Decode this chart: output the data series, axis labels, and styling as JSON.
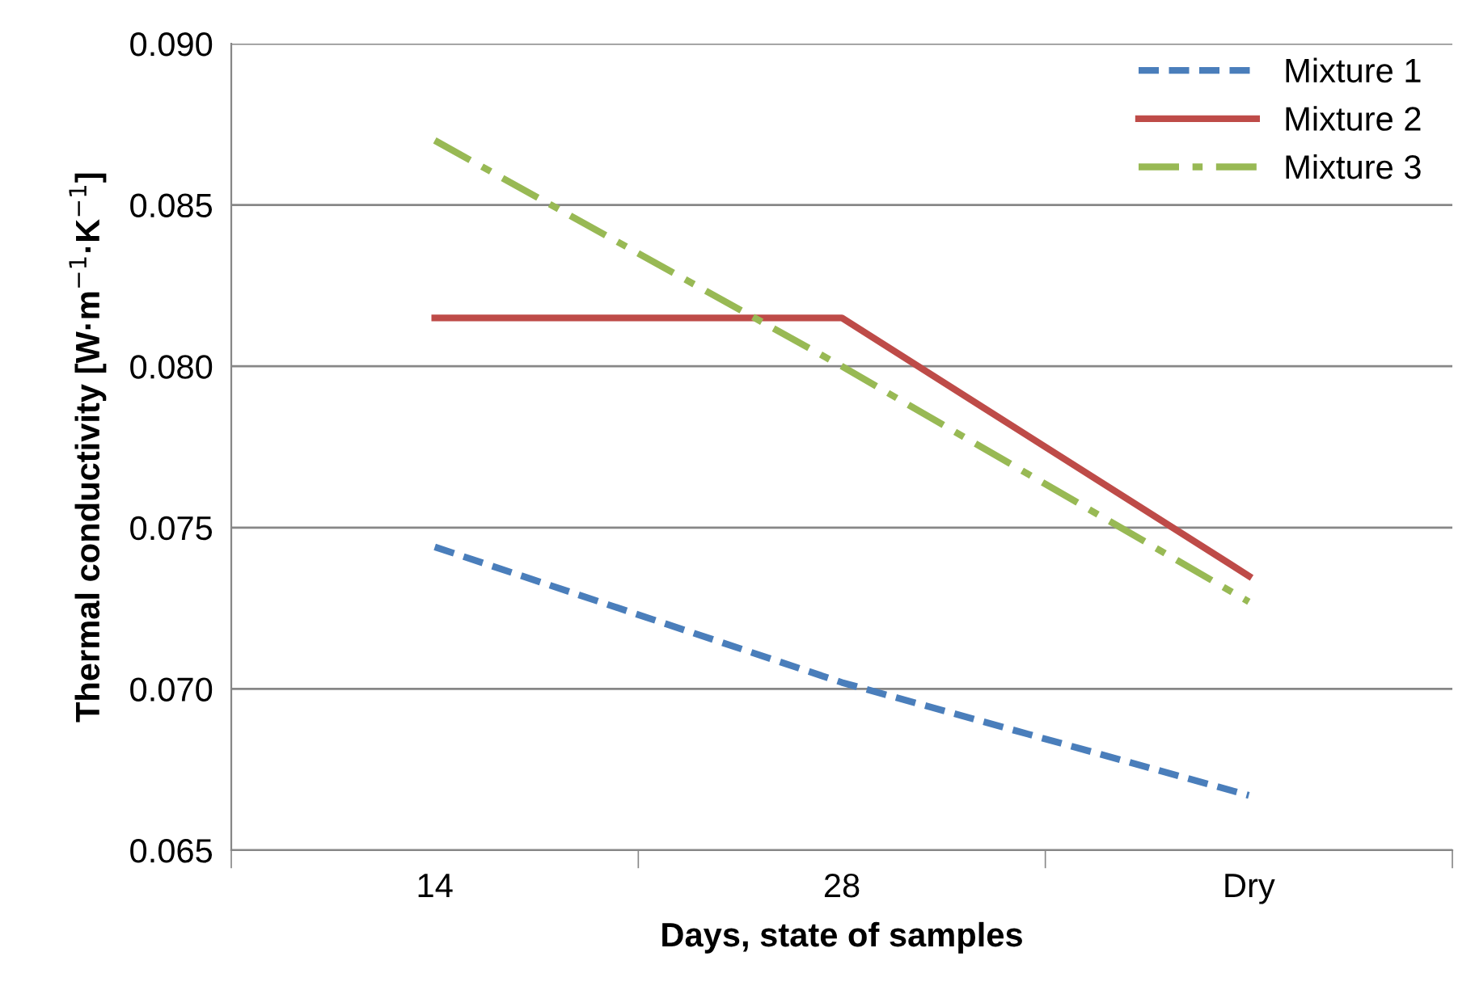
{
  "chart_data": {
    "type": "line",
    "xlabel": "Days, state of samples",
    "ylabel": "Thermal conductivity [W·m$^{−1}$·K$^{−1}$]",
    "categories": [
      "14",
      "28",
      "Dry"
    ],
    "series": [
      {
        "name": "Mixture 1",
        "color": "#4a7ebb",
        "line_style": "dashed",
        "values": [
          0.0744,
          0.0702,
          0.0667
        ]
      },
      {
        "name": "Mixture 2",
        "color": "#be4b48",
        "line_style": "solid",
        "values": [
          0.0815,
          0.0815,
          0.0735
        ]
      },
      {
        "name": "Mixture 3",
        "color": "#98b954",
        "line_style": "dashdot",
        "values": [
          0.087,
          0.08,
          0.0727
        ]
      }
    ],
    "ylim": [
      0.065,
      0.09
    ],
    "yticks": [
      {
        "value": 0.065,
        "label": "0.065"
      },
      {
        "value": 0.07,
        "label": "0.070"
      },
      {
        "value": 0.075,
        "label": "0.075"
      },
      {
        "value": 0.08,
        "label": "0.080"
      },
      {
        "value": 0.085,
        "label": "0.085"
      },
      {
        "value": 0.09,
        "label": "0.090"
      }
    ],
    "grid": "y",
    "legend": "top right",
    "marker": "none"
  }
}
